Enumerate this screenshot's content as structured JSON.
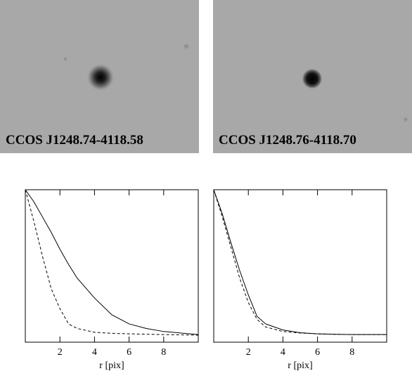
{
  "images": [
    {
      "label": "CCOS J1248.74-4118.58"
    },
    {
      "label": "CCOS J1248.76-4118.70"
    }
  ],
  "chart_data": [
    {
      "type": "line",
      "xlabel": "r [pix]",
      "xlim": [
        0,
        10
      ],
      "ylim": [
        0,
        1
      ],
      "xticks": [
        2,
        4,
        6,
        8
      ],
      "x": [
        0,
        0.5,
        1,
        1.5,
        2,
        2.5,
        3,
        4,
        5,
        6,
        7,
        8,
        9,
        10
      ],
      "series": [
        {
          "style": "solid",
          "color": "#000000",
          "values": [
            1.0,
            0.92,
            0.82,
            0.72,
            0.61,
            0.51,
            0.42,
            0.29,
            0.18,
            0.12,
            0.09,
            0.07,
            0.06,
            0.05
          ]
        },
        {
          "style": "dashed",
          "color": "#000000",
          "values": [
            1.0,
            0.79,
            0.56,
            0.35,
            0.22,
            0.12,
            0.09,
            0.065,
            0.058,
            0.055,
            0.052,
            0.05,
            0.048,
            0.046
          ]
        }
      ]
    },
    {
      "type": "line",
      "xlabel": "r [pix]",
      "xlim": [
        0,
        10
      ],
      "ylim": [
        0,
        1
      ],
      "xticks": [
        2,
        4,
        6,
        8
      ],
      "x": [
        0,
        0.5,
        1,
        1.5,
        2,
        2.5,
        3,
        4,
        5,
        6,
        7,
        8,
        9,
        10
      ],
      "series": [
        {
          "style": "solid",
          "color": "#000000",
          "values": [
            1.0,
            0.84,
            0.65,
            0.47,
            0.31,
            0.17,
            0.12,
            0.08,
            0.062,
            0.055,
            0.052,
            0.05,
            0.05,
            0.05
          ]
        },
        {
          "style": "dashed",
          "color": "#000000",
          "values": [
            1.0,
            0.82,
            0.62,
            0.42,
            0.26,
            0.15,
            0.1,
            0.07,
            0.06,
            0.055,
            0.052,
            0.05,
            0.05,
            0.05
          ]
        }
      ]
    }
  ]
}
